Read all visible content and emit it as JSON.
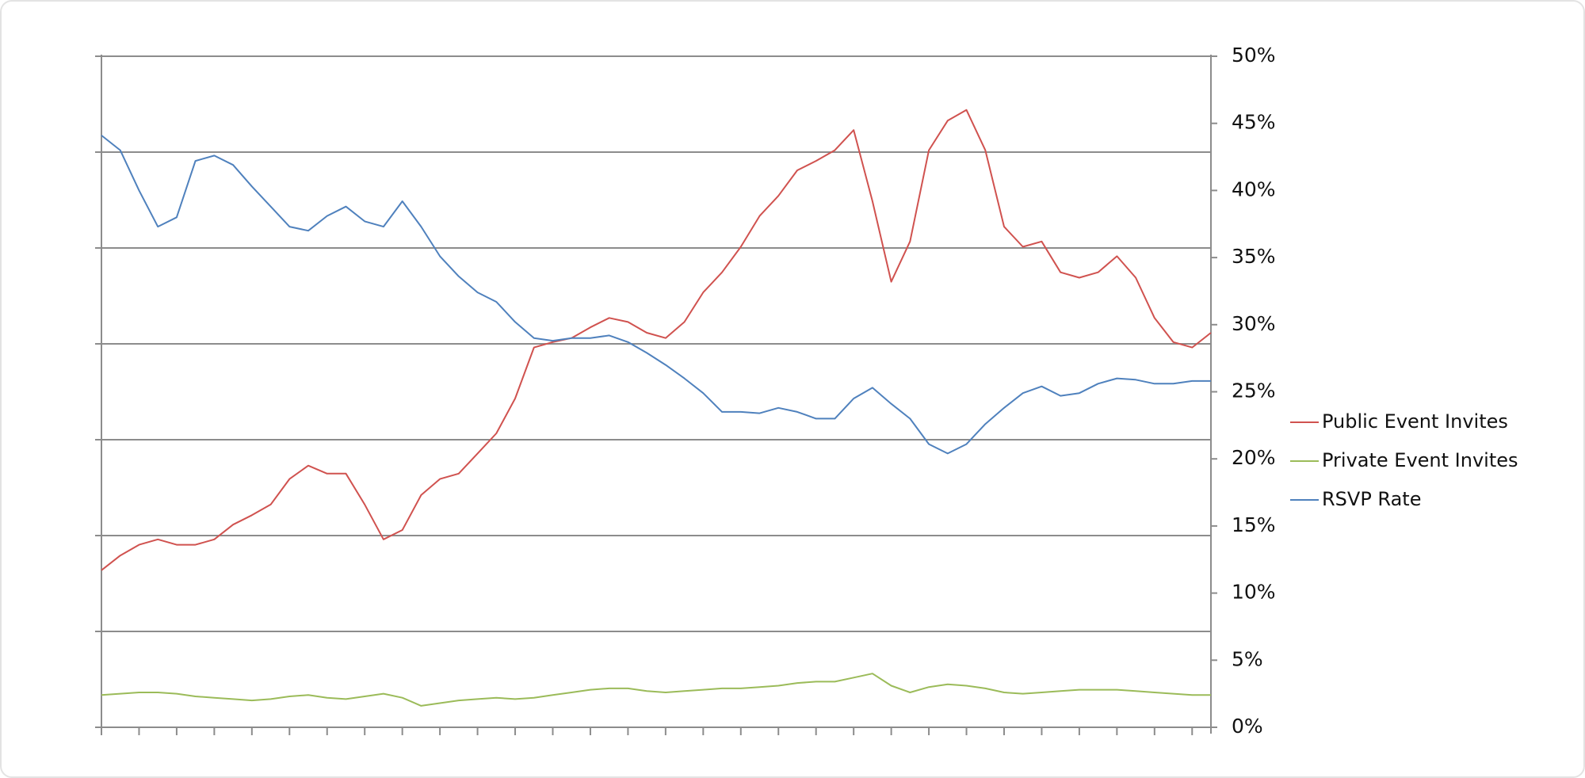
{
  "chart_data": {
    "type": "line",
    "categories": [
      null,
      null,
      null,
      null,
      null,
      null,
      null,
      null,
      null,
      null,
      null,
      null,
      null,
      null,
      null,
      null,
      null,
      null,
      null,
      null,
      null,
      null,
      null,
      null,
      null,
      null,
      null,
      null,
      null,
      null,
      null,
      null,
      null,
      null,
      null,
      null,
      null,
      null,
      null,
      null,
      null,
      null,
      null,
      null,
      null,
      null,
      null,
      null,
      null,
      null,
      null,
      null,
      null,
      null,
      null,
      null,
      null,
      null,
      null,
      null
    ],
    "series": [
      {
        "name": "Public Event Invites",
        "color": "#d0524f",
        "axis": "y2",
        "values": [
          11.7,
          12.8,
          13.6,
          14.0,
          13.6,
          13.6,
          14.0,
          15.1,
          15.8,
          16.6,
          18.5,
          19.5,
          18.9,
          18.9,
          16.6,
          14.0,
          14.7,
          17.3,
          18.5,
          18.9,
          20.4,
          21.9,
          24.5,
          28.3,
          28.7,
          29.0,
          29.8,
          30.5,
          30.2,
          29.4,
          29.0,
          30.2,
          32.4,
          33.9,
          35.8,
          38.1,
          39.6,
          41.5,
          42.2,
          43.0,
          44.5,
          39.2,
          33.2,
          36.2,
          43.0,
          45.2,
          46.0,
          43.0,
          37.3,
          35.8,
          36.2,
          33.9,
          33.5,
          33.9,
          35.1,
          33.5,
          30.5,
          28.7,
          28.3,
          29.4
        ]
      },
      {
        "name": "Private Event Invites",
        "color": "#9bbb59",
        "axis": "y2",
        "values": [
          2.4,
          2.5,
          2.6,
          2.6,
          2.5,
          2.3,
          2.2,
          2.1,
          2.0,
          2.1,
          2.3,
          2.4,
          2.2,
          2.1,
          2.3,
          2.5,
          2.2,
          1.6,
          1.8,
          2.0,
          2.1,
          2.2,
          2.1,
          2.2,
          2.4,
          2.6,
          2.8,
          2.9,
          2.9,
          2.7,
          2.6,
          2.7,
          2.8,
          2.9,
          2.9,
          3.0,
          3.1,
          3.3,
          3.4,
          3.4,
          3.7,
          4.0,
          3.1,
          2.6,
          3.0,
          3.2,
          3.1,
          2.9,
          2.6,
          2.5,
          2.6,
          2.7,
          2.8,
          2.8,
          2.8,
          2.7,
          2.6,
          2.5,
          2.4,
          2.4
        ]
      },
      {
        "name": "RSVP Rate",
        "color": "#4f81bd",
        "axis": "y2",
        "values": [
          44.1,
          43.0,
          40.0,
          37.3,
          38.0,
          42.2,
          42.6,
          41.9,
          40.3,
          38.8,
          37.3,
          37.0,
          38.1,
          38.8,
          37.7,
          37.3,
          39.2,
          37.3,
          35.1,
          33.6,
          32.4,
          31.7,
          30.2,
          29.0,
          28.8,
          29.0,
          29.0,
          29.2,
          28.7,
          27.9,
          27.0,
          26.0,
          24.9,
          23.5,
          23.5,
          23.4,
          23.8,
          23.5,
          23.0,
          23.0,
          24.5,
          25.3,
          24.1,
          23.0,
          21.1,
          20.4,
          21.1,
          22.6,
          23.8,
          24.9,
          25.4,
          24.7,
          24.9,
          25.6,
          26.0,
          25.9,
          25.6,
          25.6,
          25.8,
          25.8
        ]
      }
    ],
    "ylim": [
      0,
      7
    ],
    "yticks": [
      0,
      1,
      2,
      3,
      4,
      5,
      6,
      7
    ],
    "grid": true,
    "y2lim": [
      0,
      50
    ],
    "y2ticks": [
      {
        "value": 0,
        "label": "0%"
      },
      {
        "value": 5,
        "label": "5%"
      },
      {
        "value": 10,
        "label": "10%"
      },
      {
        "value": 15,
        "label": "15%"
      },
      {
        "value": 20,
        "label": "20%"
      },
      {
        "value": 25,
        "label": "25%"
      },
      {
        "value": 30,
        "label": "30%"
      },
      {
        "value": 35,
        "label": "35%"
      },
      {
        "value": 40,
        "label": "40%"
      },
      {
        "value": 45,
        "label": "45%"
      },
      {
        "value": 50,
        "label": "50%"
      }
    ],
    "legend": "right"
  }
}
